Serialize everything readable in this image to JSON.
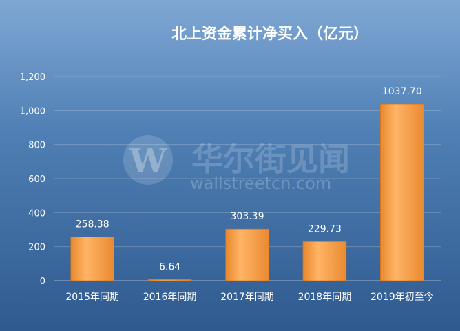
{
  "chart_data": {
    "type": "bar",
    "title": "北上资金累计净买入（亿元）",
    "categories": [
      "2015年同期",
      "2016年同期",
      "2017年同期",
      "2018年同期",
      "2019年初至今"
    ],
    "values": [
      258.38,
      6.64,
      303.39,
      229.73,
      1037.7
    ],
    "value_labels": [
      "258.38",
      "6.64",
      "303.39",
      "229.73",
      "1037.70"
    ],
    "y_ticks": [
      0,
      200,
      400,
      600,
      800,
      1000,
      1200
    ],
    "y_tick_labels": [
      "0",
      "200",
      "400",
      "600",
      "800",
      "1,000",
      "1,200"
    ],
    "ylim": [
      0,
      1200
    ],
    "xlabel": "",
    "ylabel": "",
    "grid": true,
    "legend": "none",
    "bar_color": "#f5a04a"
  },
  "watermark": {
    "logo_letter": "W",
    "text_cn": "华尔街见闻",
    "text_en": "wallstreetcn.com"
  }
}
